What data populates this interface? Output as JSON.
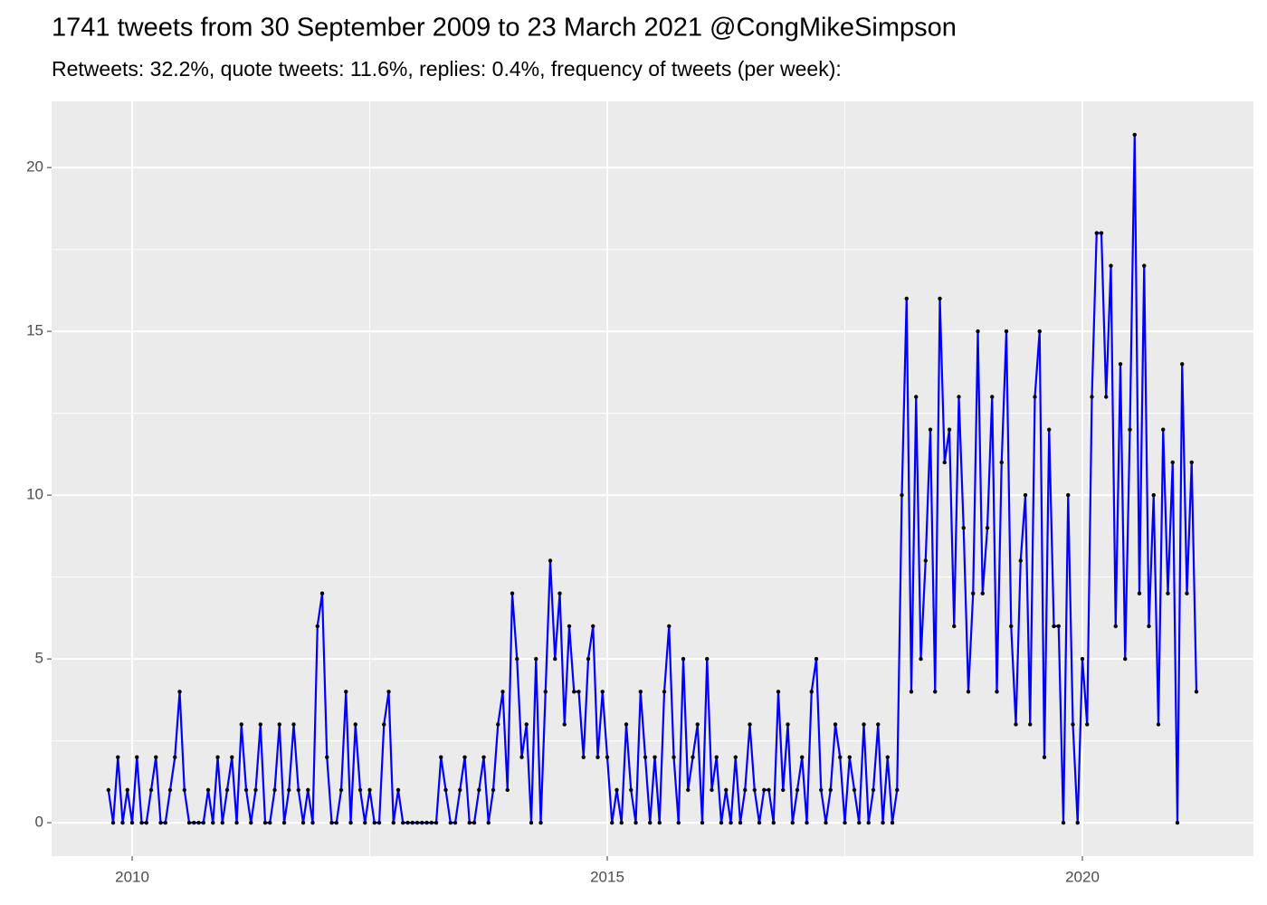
{
  "chart_data": {
    "type": "line",
    "title": "1741 tweets from 30 September 2009 to 23 March 2021 @CongMikeSimpson",
    "subtitle": "Retweets: 32.2%, quote tweets: 11.6%, replies: 0.4%, frequency of tweets (per week):",
    "x": [
      2009.75,
      2009.8,
      2009.85,
      2009.9,
      2009.95,
      2010,
      2010.05,
      2010.1,
      2010.15,
      2010.2,
      2010.25,
      2010.3,
      2010.35,
      2010.4,
      2010.45,
      2010.5,
      2010.55,
      2010.6,
      2010.65,
      2010.7,
      2010.75,
      2010.8,
      2010.85,
      2010.9,
      2010.95,
      2011,
      2011.05,
      2011.1,
      2011.15,
      2011.2,
      2011.25,
      2011.3,
      2011.35,
      2011.4,
      2011.45,
      2011.5,
      2011.55,
      2011.6,
      2011.65,
      2011.7,
      2011.75,
      2011.8,
      2011.85,
      2011.9,
      2011.95,
      2012,
      2012.05,
      2012.1,
      2012.15,
      2012.2,
      2012.25,
      2012.3,
      2012.35,
      2012.4,
      2012.45,
      2012.5,
      2012.55,
      2012.6,
      2012.65,
      2012.7,
      2012.75,
      2012.8,
      2012.85,
      2012.9,
      2012.95,
      2013,
      2013.05,
      2013.1,
      2013.15,
      2013.2,
      2013.25,
      2013.3,
      2013.35,
      2013.4,
      2013.45,
      2013.5,
      2013.55,
      2013.6,
      2013.65,
      2013.7,
      2013.75,
      2013.8,
      2013.85,
      2013.9,
      2013.95,
      2014,
      2014.05,
      2014.1,
      2014.15,
      2014.2,
      2014.25,
      2014.3,
      2014.35,
      2014.4,
      2014.45,
      2014.5,
      2014.55,
      2014.6,
      2014.65,
      2014.7,
      2014.75,
      2014.8,
      2014.85,
      2014.9,
      2014.95,
      2015,
      2015.05,
      2015.1,
      2015.15,
      2015.2,
      2015.25,
      2015.3,
      2015.35,
      2015.4,
      2015.45,
      2015.5,
      2015.55,
      2015.6,
      2015.65,
      2015.7,
      2015.75,
      2015.8,
      2015.85,
      2015.9,
      2015.95,
      2016,
      2016.05,
      2016.1,
      2016.15,
      2016.2,
      2016.25,
      2016.3,
      2016.35,
      2016.4,
      2016.45,
      2016.5,
      2016.55,
      2016.6,
      2016.65,
      2016.7,
      2016.75,
      2016.8,
      2016.85,
      2016.9,
      2016.95,
      2017,
      2017.05,
      2017.1,
      2017.15,
      2017.2,
      2017.25,
      2017.3,
      2017.35,
      2017.4,
      2017.45,
      2017.5,
      2017.55,
      2017.6,
      2017.65,
      2017.7,
      2017.75,
      2017.8,
      2017.85,
      2017.9,
      2017.95,
      2018,
      2018.05,
      2018.1,
      2018.15,
      2018.2,
      2018.25,
      2018.3,
      2018.35,
      2018.4,
      2018.45,
      2018.5,
      2018.55,
      2018.6,
      2018.65,
      2018.7,
      2018.75,
      2018.8,
      2018.85,
      2018.9,
      2018.95,
      2019,
      2019.05,
      2019.1,
      2019.15,
      2019.2,
      2019.25,
      2019.3,
      2019.35,
      2019.4,
      2019.45,
      2019.5,
      2019.55,
      2019.6,
      2019.65,
      2019.7,
      2019.75,
      2019.8,
      2019.85,
      2019.9,
      2019.95,
      2020,
      2020.05,
      2020.1,
      2020.15,
      2020.2,
      2020.25,
      2020.3,
      2020.35,
      2020.4,
      2020.45,
      2020.5,
      2020.55,
      2020.6,
      2020.65,
      2020.7,
      2020.75,
      2020.8,
      2020.85,
      2020.9,
      2020.95,
      2021,
      2021.05,
      2021.1,
      2021.15,
      2021.2
    ],
    "series": [
      {
        "color": "#0000ff",
        "values": [
          1,
          0,
          2,
          0,
          1,
          0,
          2,
          0,
          0,
          1,
          2,
          0,
          0,
          1,
          2,
          4,
          1,
          0,
          0,
          0,
          0,
          1,
          0,
          2,
          0,
          1,
          2,
          0,
          3,
          1,
          0,
          1,
          3,
          0,
          0,
          1,
          3,
          0,
          1,
          3,
          1,
          0,
          1,
          0,
          6,
          7,
          2,
          0,
          0,
          1,
          4,
          0,
          3,
          1,
          0,
          1,
          0,
          0,
          3,
          4,
          0,
          1,
          0,
          0,
          0,
          0,
          0,
          0,
          0,
          0,
          2,
          1,
          0,
          0,
          1,
          2,
          0,
          0,
          1,
          2,
          0,
          1,
          3,
          4,
          1,
          7,
          5,
          2,
          3,
          0,
          5,
          0,
          4,
          8,
          5,
          7,
          3,
          6,
          4,
          4,
          2,
          5,
          6,
          2,
          4,
          2,
          0,
          1,
          0,
          3,
          1,
          0,
          4,
          2,
          0,
          2,
          0,
          4,
          6,
          2,
          0,
          5,
          1,
          2,
          3,
          0,
          5,
          1,
          2,
          0,
          1,
          0,
          2,
          0,
          1,
          3,
          1,
          0,
          1,
          1,
          0,
          4,
          1,
          3,
          0,
          1,
          2,
          0,
          4,
          5,
          1,
          0,
          1,
          3,
          2,
          0,
          2,
          1,
          0,
          3,
          0,
          1,
          3,
          0,
          2,
          0,
          1,
          10,
          16,
          4,
          13,
          5,
          8,
          12,
          4,
          16,
          11,
          12,
          6,
          13,
          9,
          4,
          7,
          15,
          7,
          9,
          13,
          4,
          11,
          15,
          6,
          3,
          8,
          10,
          3,
          13,
          15,
          2,
          12,
          6,
          6,
          0,
          10,
          3,
          0,
          5,
          3,
          13,
          18,
          18,
          13,
          17,
          6,
          14,
          5,
          12,
          21,
          7,
          17,
          6,
          10,
          3,
          12,
          7,
          11,
          0,
          14,
          7,
          11,
          4
        ]
      }
    ],
    "point_color": "#000000",
    "xlim": [
      2009.152,
      2021.8
    ],
    "xticks": [
      2010,
      2015,
      2020
    ],
    "xminor": [
      2012.5,
      2017.5
    ],
    "ylim": [
      -1.02,
      22.02
    ],
    "yticks": [
      0,
      5,
      10,
      15,
      20
    ],
    "yminor": [
      2.5,
      7.5,
      12.5,
      17.5
    ],
    "grid": true
  }
}
